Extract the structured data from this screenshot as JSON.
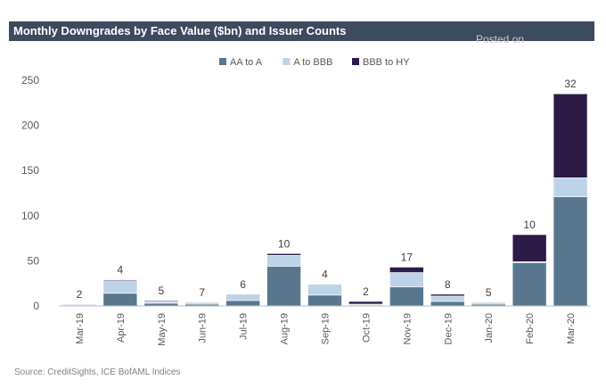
{
  "title": "Monthly Downgrades by Face Value ($bn) and Issuer Counts",
  "source": "Source: CreditSights, ICE BofAML Indices",
  "watermark": "Posted on",
  "colors": {
    "aa_to_a": "#58778f",
    "a_to_bbb": "#bdd3e8",
    "bbb_to_hy": "#2c1a47",
    "axis_text": "#595959",
    "title_bar": "#3e4a5e"
  },
  "chart_data": {
    "type": "bar",
    "stacked": true,
    "categories": [
      "Mar-19",
      "Apr-19",
      "May-19",
      "Jun-19",
      "Jul-19",
      "Aug-19",
      "Sep-19",
      "Oct-19",
      "Nov-19",
      "Dec-19",
      "Jan-20",
      "Feb-20",
      "Mar-20"
    ],
    "series": [
      {
        "name": "AA to A",
        "values": [
          1,
          14,
          3,
          2,
          6,
          44,
          12,
          1,
          21,
          5,
          2,
          48,
          121
        ]
      },
      {
        "name": "A to BBB",
        "values": [
          1,
          14,
          2,
          2,
          7,
          12,
          12,
          1,
          16,
          6,
          2,
          1,
          21
        ]
      },
      {
        "name": "BBB to HY",
        "values": [
          0,
          1,
          1,
          0,
          0,
          2,
          0,
          3,
          6,
          2,
          0,
          30,
          93
        ]
      }
    ],
    "issuer_counts": [
      2,
      4,
      5,
      7,
      6,
      10,
      4,
      2,
      17,
      8,
      5,
      10,
      32
    ],
    "ylim": [
      0,
      250
    ],
    "yticks": [
      0,
      50,
      100,
      150,
      200,
      250
    ],
    "legend_position": "top-center",
    "grid": false
  }
}
